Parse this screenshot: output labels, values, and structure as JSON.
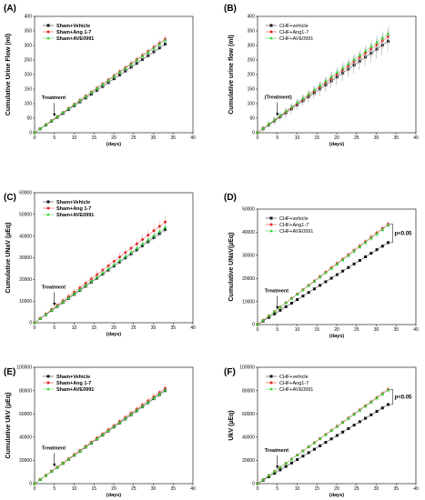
{
  "colors": {
    "vehicle": "#111111",
    "ang": "#e8231f",
    "ave": "#2fd12f",
    "err_vehicle": "#9a9a9a",
    "err_ang": "#f0a0a0",
    "err_ave": "#85d2e8"
  },
  "chart_data": [
    {
      "type": "line",
      "letter": "(A)",
      "ylabel": "Cumulative Urine Flow (ml)",
      "xlabel": "(days)",
      "xlim": [
        0,
        40
      ],
      "ylim": [
        0,
        400
      ],
      "xticks": [
        "0",
        "5",
        "10",
        "15",
        "20",
        "25",
        "30",
        "35",
        "40"
      ],
      "yticks": [
        "0",
        "50",
        "100",
        "150",
        "200",
        "250",
        "300",
        "350",
        "400"
      ],
      "legend_bold": true,
      "legend_position": "top-left",
      "annotation": "Treatment",
      "series": [
        {
          "name": "Sham+Vehicle",
          "end": 305,
          "err": 10
        },
        {
          "name": "Sham+Ang 1-7",
          "end": 322,
          "err": 14
        },
        {
          "name": "Sham+AVE0991",
          "end": 318,
          "err": 14
        }
      ]
    },
    {
      "type": "line",
      "letter": "(B)",
      "ylabel": "Cumulative urine flow (ml)",
      "xlabel": "(days)",
      "xlim": [
        0,
        40
      ],
      "ylim": [
        0,
        400
      ],
      "xticks": [
        "0",
        "5",
        "10",
        "15",
        "20",
        "25",
        "30",
        "35",
        "40"
      ],
      "yticks": [
        "0",
        "50",
        "100",
        "150",
        "200",
        "250",
        "300",
        "350",
        "400"
      ],
      "legend_bold": false,
      "legend_position": "top-left",
      "annotation": "(Treatment)",
      "series": [
        {
          "name": "CHF+vehicle",
          "end": 315,
          "err": 35
        },
        {
          "name": "CHF+Ang1-7",
          "end": 330,
          "err": 28
        },
        {
          "name": "CHF+AVE0991",
          "end": 340,
          "err": 25
        }
      ]
    },
    {
      "type": "line",
      "letter": "(C)",
      "ylabel": "Cumulative UNaV (µEq)",
      "xlabel": "(days)",
      "xlim": [
        0,
        40
      ],
      "ylim": [
        0,
        60000
      ],
      "xticks": [
        "0",
        "5",
        "10",
        "15",
        "20",
        "25",
        "30",
        "35",
        "40"
      ],
      "yticks": [
        "0",
        "10000",
        "20000",
        "30000",
        "40000",
        "50000",
        "60000"
      ],
      "legend_bold": true,
      "legend_position": "top-left",
      "annotation": "Treatment",
      "series": [
        {
          "name": "Sham+Vehicle",
          "end": 43000,
          "err": 1500
        },
        {
          "name": "Sham+Ang 1-7",
          "end": 46500,
          "err": 3000
        },
        {
          "name": "Sham+AVE0991",
          "end": 44000,
          "err": 2000
        }
      ]
    },
    {
      "type": "line",
      "letter": "(D)",
      "ylabel": "Cumulative UNaV(µEq)",
      "xlabel": "(days)",
      "xlim": [
        0,
        40
      ],
      "ylim": [
        0,
        50000
      ],
      "xticks": [
        "0",
        "5",
        "10",
        "15",
        "20",
        "25",
        "30",
        "35",
        "40"
      ],
      "yticks": [
        "0",
        "10000",
        "20000",
        "30000",
        "40000",
        "50000"
      ],
      "legend_bold": false,
      "legend_position": "top-left",
      "annotation": "Treatment",
      "significance": "p<0.05",
      "series": [
        {
          "name": "CHF+vehicle",
          "end": 35500,
          "err": 800
        },
        {
          "name": "CHF+Ang1-7",
          "end": 43500,
          "err": 1500
        },
        {
          "name": "CHF+AVE0991",
          "end": 43000,
          "err": 1500
        }
      ]
    },
    {
      "type": "line",
      "letter": "(E)",
      "ylabel": "Cumulative UkV (µEq)",
      "xlabel": "(days)",
      "xlim": [
        0,
        40
      ],
      "ylim": [
        0,
        100000
      ],
      "xticks": [
        "0",
        "5",
        "10",
        "15",
        "20",
        "25",
        "30",
        "35",
        "40"
      ],
      "yticks": [
        "0",
        "20000",
        "40000",
        "60000",
        "80000",
        "100000"
      ],
      "legend_bold": true,
      "legend_position": "top-left",
      "annotation": "Treatment",
      "series": [
        {
          "name": "Sham+Vehicle",
          "end": 80000,
          "err": 2500
        },
        {
          "name": "Sham+Ang 1-7",
          "end": 82000,
          "err": 3000
        },
        {
          "name": "Sham+AVE0991",
          "end": 80500,
          "err": 2500
        }
      ]
    },
    {
      "type": "line",
      "letter": "(F)",
      "ylabel": "UkV (µEq)",
      "xlabel": "(days)",
      "xlim": [
        0,
        40
      ],
      "ylim": [
        0,
        100000
      ],
      "xticks": [
        "0",
        "5",
        "10",
        "15",
        "20",
        "25",
        "30",
        "35",
        "40"
      ],
      "yticks": [
        "0",
        "20000",
        "40000",
        "60000",
        "80000",
        "100000"
      ],
      "legend_bold": false,
      "legend_position": "top-left",
      "annotation": "Treatment",
      "significance": "p<0.05",
      "series": [
        {
          "name": "CHF+vehicle",
          "end": 68000,
          "err": 1500
        },
        {
          "name": "CHF+Ang1-7",
          "end": 81000,
          "err": 2500
        },
        {
          "name": "CHF+AVE0991",
          "end": 80500,
          "err": 2500
        }
      ]
    }
  ]
}
